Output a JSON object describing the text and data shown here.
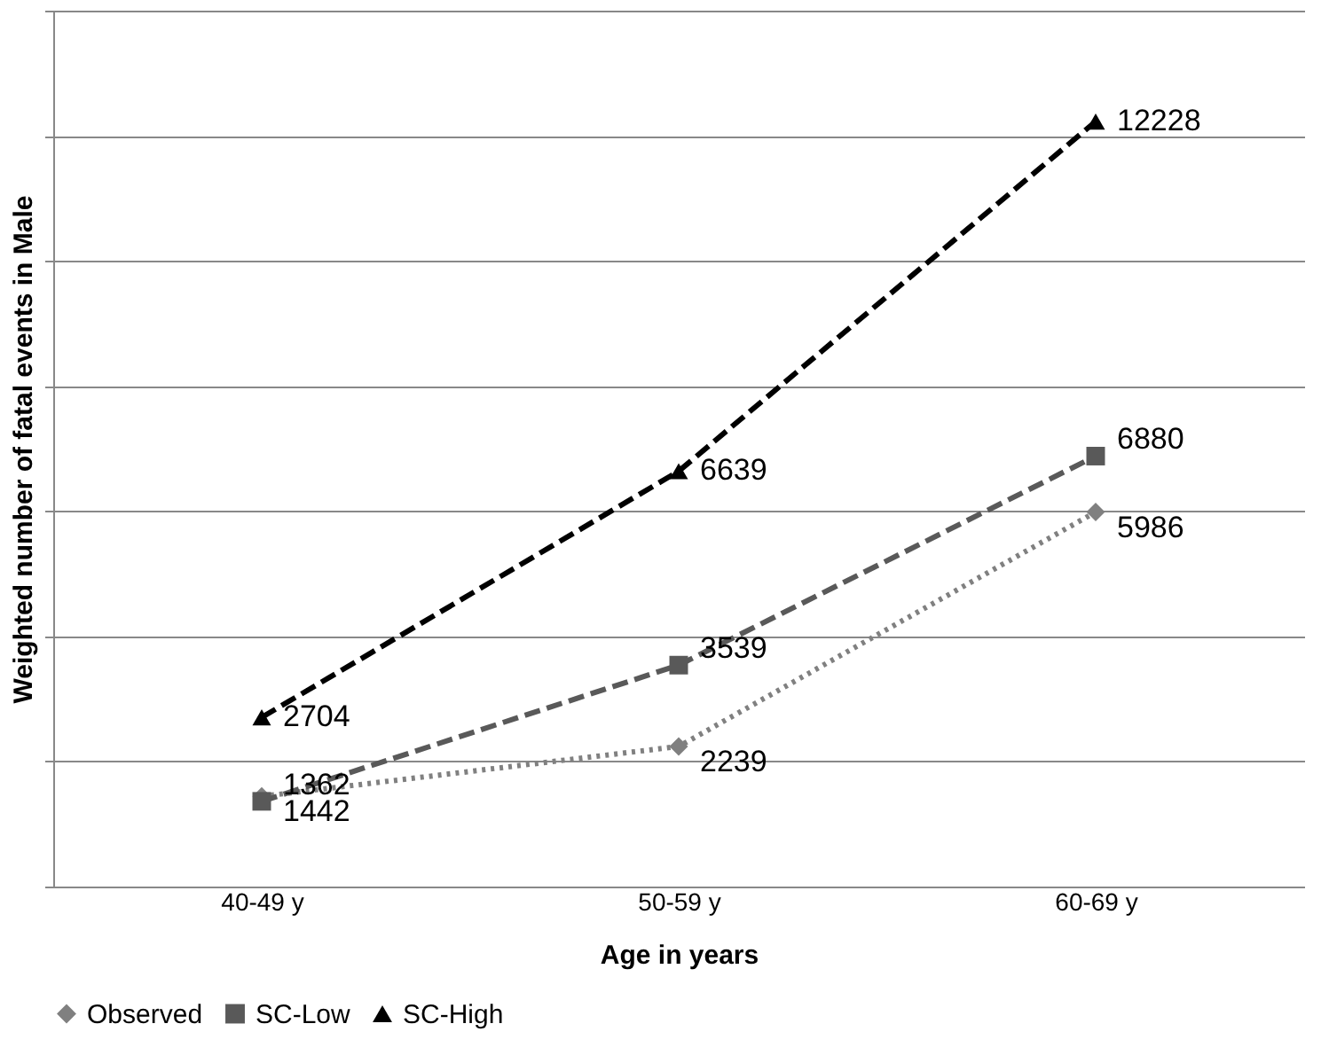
{
  "chart_data": {
    "type": "line",
    "xlabel": "Age in years",
    "ylabel": "Weighted number of fatal events in Male",
    "categories": [
      "40-49 y",
      "50-59 y",
      "60-69 y"
    ],
    "series": [
      {
        "name": "Observed",
        "color": "#808080",
        "values": [
          1442,
          2239,
          5986
        ],
        "marker": "diamond",
        "line_style": "dotted"
      },
      {
        "name": "SC-Low",
        "color": "#595959",
        "values": [
          1362,
          3539,
          6880
        ],
        "marker": "square",
        "line_style": "dashed"
      },
      {
        "name": "SC-High",
        "color": "#000000",
        "values": [
          2704,
          6639,
          12228
        ],
        "marker": "triangle",
        "line_style": "dashed"
      }
    ],
    "ylim": [
      0,
      14000
    ],
    "yticks": [
      {
        "value": 0,
        "label": null
      },
      {
        "value": 2000,
        "label": null
      },
      {
        "value": 4000,
        "label": null
      },
      {
        "value": 6000,
        "label": null
      },
      {
        "value": 8000,
        "label": null
      },
      {
        "value": 10000,
        "label": null
      },
      {
        "value": 12000,
        "label": null
      },
      {
        "value": 14000,
        "label": null
      }
    ],
    "tick_labels": "x",
    "grid": "y",
    "legend": "bottom",
    "data_labels": true
  }
}
